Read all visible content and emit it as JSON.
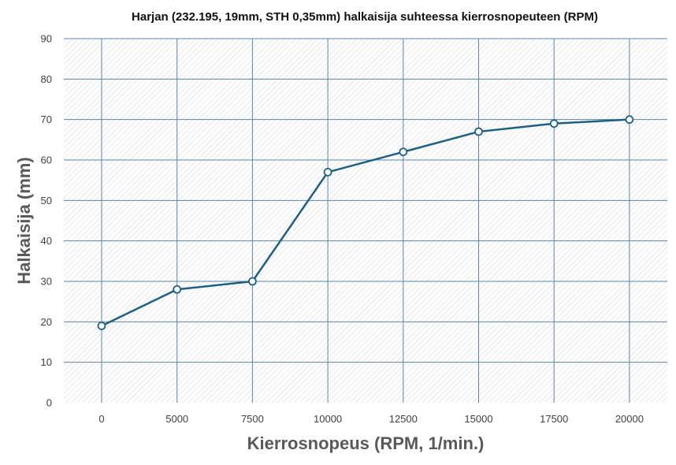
{
  "chart_data": {
    "type": "line",
    "title": "Harjan (232.195, 19mm, STH 0,35mm) halkaisija suhteessa kierrosnopeuteen (RPM)",
    "xlabel": "Kierrosnopeus (RPM, 1/min.)",
    "ylabel": "Halkaisija (mm)",
    "categories": [
      "0",
      "5000",
      "7500",
      "10000",
      "12500",
      "15000",
      "17500",
      "20000"
    ],
    "series": [
      {
        "values": [
          19,
          28,
          30,
          57,
          62,
          67,
          69,
          70
        ]
      }
    ],
    "ylim": [
      0,
      90
    ],
    "yticks": [
      "0",
      "10",
      "20",
      "30",
      "40",
      "50",
      "60",
      "70",
      "80",
      "90"
    ],
    "grid": true,
    "legend": "none",
    "colors": {
      "line": "#1f5f82",
      "grid": "#5b86a8",
      "hatch": "#c9c9c9",
      "plot_background": "#ffffff"
    }
  }
}
